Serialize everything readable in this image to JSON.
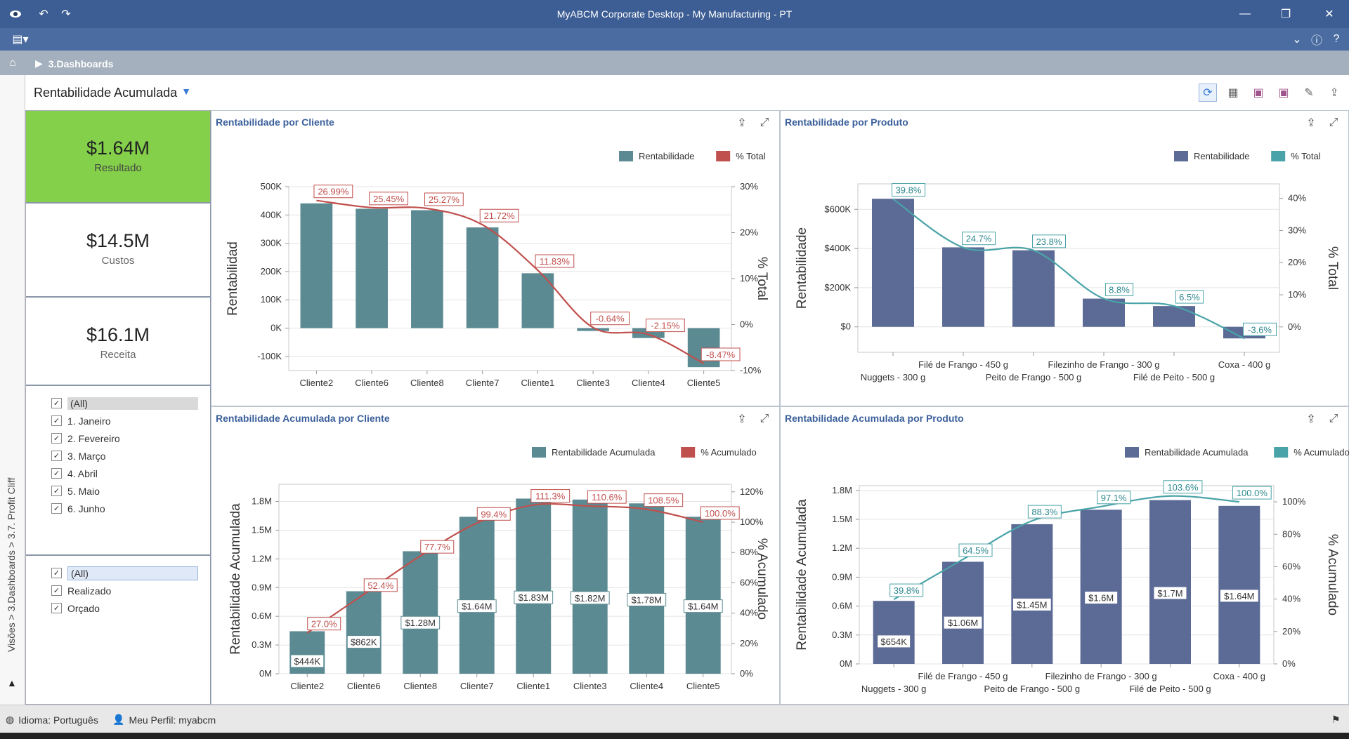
{
  "window": {
    "title": "MyABCM Corporate Desktop - My Manufacturing - PT"
  },
  "breadcrumb": {
    "label": "3.Dashboards"
  },
  "side_path": "Visões > 3.Dashboards > 3.7. Profit Cliff",
  "dashboard": {
    "title": "Rentabilidade Acumulada"
  },
  "kpis": [
    {
      "value": "$1.64M",
      "label": "Resultado",
      "color": "#84d04a"
    },
    {
      "value": "$14.5M",
      "label": "Custos"
    },
    {
      "value": "$16.1M",
      "label": "Receita"
    }
  ],
  "month_filter": [
    "(All)",
    "1. Janeiro",
    "2. Fevereiro",
    "3. Março",
    "4. Abril",
    "5. Maio",
    "6. Junho"
  ],
  "scenario_filter": [
    "(All)",
    "Realizado",
    "Orçado"
  ],
  "status": {
    "language": "Idioma: Português",
    "profile": "Meu Perfil: myabcm"
  },
  "colors": {
    "teal_bar": "#5b8a92",
    "red_line": "#c0504d",
    "navy_bar": "#5c6a96",
    "teal_line": "#4aa3a8",
    "kpi_green": "#84d04a"
  },
  "panels": {
    "p1": {
      "title": "Rentabilidade por Cliente"
    },
    "p2": {
      "title": "Rentabilidade por Produto"
    },
    "p3": {
      "title": "Rentabilidade Acumulada por Cliente"
    },
    "p4": {
      "title": "Rentabilidade Acumulada por Produto"
    }
  },
  "chart_data": [
    {
      "type": "bar",
      "title": "Rentabilidade por Cliente",
      "categories": [
        "Cliente2",
        "Cliente6",
        "Cliente8",
        "Cliente7",
        "Cliente1",
        "Cliente3",
        "Cliente4",
        "Cliente5"
      ],
      "series": [
        {
          "name": "Rentabilidade",
          "values": [
            441000,
            422000,
            417000,
            356000,
            194000,
            -10000,
            -35000,
            -138000
          ]
        },
        {
          "name": "% Total",
          "values": [
            26.99,
            25.45,
            25.27,
            21.72,
            11.83,
            -0.64,
            -2.15,
            -8.47
          ],
          "labels": [
            "26.99%",
            "25.45%",
            "25.27%",
            "21.72%",
            "11.83%",
            "-0.64%",
            "-2.15%",
            "-8.47%"
          ]
        }
      ],
      "ylabel": "Rentabilidad",
      "y2label": "% Total",
      "ylim": [
        -150000,
        500000
      ],
      "y2lim": [
        -10,
        30
      ],
      "yticks": [
        "500K",
        "400K",
        "300K",
        "200K",
        "100K",
        "0K",
        "-100K"
      ],
      "y2ticks": [
        "30%",
        "20%",
        "10%",
        "0%",
        "-10%"
      ],
      "legend": "top-right"
    },
    {
      "type": "bar",
      "title": "Rentabilidade por Produto",
      "categories": [
        "Nuggets - 300 g",
        "Filé de Frango - 450 g",
        "Peito de Frango - 500 g",
        "Filezinho de Frango - 300 g",
        "Filé de Peito - 500 g",
        "Coxa - 400 g"
      ],
      "series": [
        {
          "name": "Rentabilidade",
          "values": [
            654000,
            406000,
            391000,
            144000,
            106000,
            -59000
          ]
        },
        {
          "name": "% Total",
          "values": [
            39.8,
            24.7,
            23.8,
            8.8,
            6.5,
            -3.6
          ],
          "labels": [
            "39.8%",
            "24.7%",
            "23.8%",
            "8.8%",
            "6.5%",
            "-3.6%"
          ]
        }
      ],
      "ylabel": "Rentabilidade",
      "y2label": "% Total",
      "ylim": [
        -130000,
        730000
      ],
      "y2lim": [
        -7.9,
        44.5
      ],
      "yticks": [
        "$600K",
        "$400K",
        "$200K",
        "$0"
      ],
      "y2ticks": [
        "40%",
        "30%",
        "20%",
        "10%",
        "0%"
      ],
      "legend": "top-right"
    },
    {
      "type": "bar",
      "title": "Rentabilidade Acumulada por Cliente",
      "categories": [
        "Cliente2",
        "Cliente6",
        "Cliente8",
        "Cliente7",
        "Cliente1",
        "Cliente3",
        "Cliente4",
        "Cliente5"
      ],
      "series": [
        {
          "name": "Rentabilidade Acumulada",
          "values": [
            444000,
            862000,
            1280000,
            1640000,
            1830000,
            1820000,
            1780000,
            1640000
          ],
          "labels": [
            "$444K",
            "$862K",
            "$1.28M",
            "$1.64M",
            "$1.83M",
            "$1.82M",
            "$1.78M",
            "$1.64M"
          ]
        },
        {
          "name": "% Acumulado",
          "values": [
            27.0,
            52.4,
            77.7,
            99.4,
            111.3,
            110.6,
            108.5,
            100.0
          ],
          "labels": [
            "27.0%",
            "52.4%",
            "77.7%",
            "99.4%",
            "111.3%",
            "110.6%",
            "108.5%",
            "100.0%"
          ]
        }
      ],
      "ylabel": "Rentabilidade Acumulada",
      "y2label": "% Acumulado",
      "ylim": [
        0,
        1980000
      ],
      "y2lim": [
        0,
        125
      ],
      "yticks": [
        "1.8M",
        "1.5M",
        "1.2M",
        "0.9M",
        "0.6M",
        "0.3M",
        "0M"
      ],
      "y2ticks": [
        "120%",
        "100%",
        "80%",
        "60%",
        "40%",
        "20%",
        "0%"
      ],
      "legend": "top-right"
    },
    {
      "type": "bar",
      "title": "Rentabilidade Acumulada por Produto",
      "categories": [
        "Nuggets - 300 g",
        "Filé de Frango - 450 g",
        "Peito de Frango - 500 g",
        "Filezinho de Frango - 300 g",
        "Filé de Peito - 500 g",
        "Coxa - 400 g"
      ],
      "series": [
        {
          "name": "Rentabilidade Acumulada",
          "values": [
            654000,
            1060000,
            1450000,
            1600000,
            1700000,
            1640000
          ],
          "labels": [
            "$654K",
            "$1.06M",
            "$1.45M",
            "$1.6M",
            "$1.7M",
            "$1.64M"
          ]
        },
        {
          "name": "% Acumulado",
          "values": [
            39.8,
            64.5,
            88.3,
            97.1,
            103.6,
            100.0
          ],
          "labels": [
            "39.8%",
            "64.5%",
            "88.3%",
            "97.1%",
            "103.6%",
            "100.0%"
          ]
        }
      ],
      "ylabel": "Rentabilidade Acumulada",
      "y2label": "% Acumulado",
      "ylim": [
        0,
        1850000
      ],
      "y2lim": [
        0,
        110
      ],
      "yticks": [
        "1.8M",
        "1.5M",
        "1.2M",
        "0.9M",
        "0.6M",
        "0.3M",
        "0M"
      ],
      "y2ticks": [
        "100%",
        "80%",
        "60%",
        "40%",
        "20%",
        "0%"
      ],
      "legend": "top-right"
    }
  ]
}
